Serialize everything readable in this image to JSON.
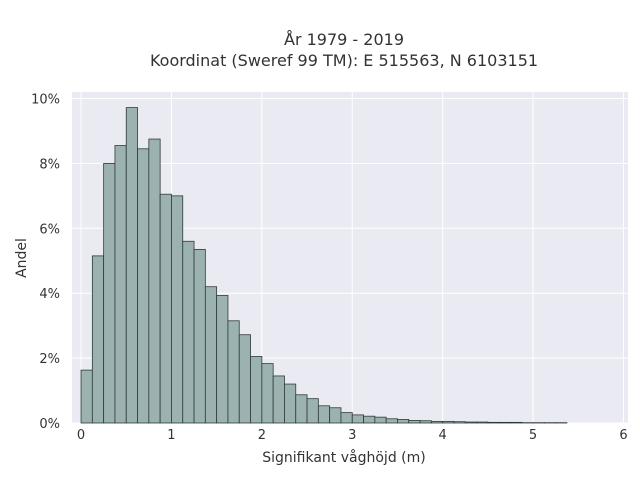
{
  "chart_data": {
    "type": "bar",
    "title": "År 1979 - 2019",
    "subtitle": "Koordinat (Sweref 99 TM): E 515563, N 6103151",
    "xlabel": "Signifikant våghöjd (m)",
    "ylabel": "Andel",
    "xlim": [
      -0.1,
      6.05
    ],
    "ylim": [
      0,
      10.2
    ],
    "x_ticks": [
      0,
      1,
      2,
      3,
      4,
      5,
      6
    ],
    "x_tick_labels": [
      "0",
      "1",
      "2",
      "3",
      "4",
      "5",
      "6"
    ],
    "y_ticks": [
      0,
      2,
      4,
      6,
      8,
      10
    ],
    "y_tick_labels": [
      "0%",
      "2%",
      "4%",
      "6%",
      "8%",
      "10%"
    ],
    "bin_width": 0.125,
    "bin_start": 0,
    "values": [
      1.63,
      5.15,
      8.0,
      8.55,
      9.72,
      8.45,
      8.75,
      7.05,
      7.0,
      5.6,
      5.35,
      4.2,
      3.93,
      3.15,
      2.72,
      2.05,
      1.83,
      1.45,
      1.2,
      0.87,
      0.75,
      0.53,
      0.47,
      0.32,
      0.25,
      0.21,
      0.18,
      0.13,
      0.11,
      0.08,
      0.07,
      0.05,
      0.05,
      0.04,
      0.03,
      0.03,
      0.02,
      0.02,
      0.02,
      0.01,
      0.01,
      0.01,
      0.01
    ],
    "grid": true,
    "bar_color": "#9bb2b1",
    "bar_edge_color": "#2e3b3a",
    "background_color": "#eaeaf2"
  }
}
